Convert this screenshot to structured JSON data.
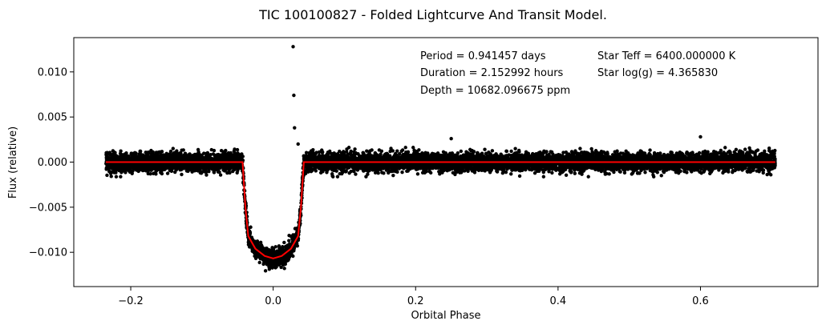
{
  "chart_data": {
    "type": "scatter",
    "title": "TIC 100100827 - Folded Lightcurve And Transit Model.",
    "xlabel": "Orbital Phase",
    "ylabel": "Flux (relative)",
    "xlim": [
      -0.28,
      0.765
    ],
    "ylim": [
      -0.0138,
      0.0138
    ],
    "xticks": [
      -0.2,
      0.0,
      0.2,
      0.4,
      0.6
    ],
    "xtick_labels": [
      "−0.2",
      "0.0",
      "0.2",
      "0.4",
      "0.6"
    ],
    "yticks": [
      -0.01,
      -0.005,
      0.0,
      0.005,
      0.01
    ],
    "ytick_labels": [
      "−0.010",
      "−0.005",
      "0.000",
      "0.005",
      "0.010"
    ],
    "grid": false,
    "annotations": [
      "Period =   0.941457 days",
      "Duration =   2.152992 hours",
      "Depth = 10682.096675 ppm",
      "Star Teff = 6400.000000 K",
      "Star log(g) =   4.365830"
    ],
    "series": [
      {
        "name": "Folded lightcurve",
        "kind": "scatter",
        "color": "#000000",
        "phase_range": [
          -0.235,
          0.705
        ],
        "noise_halfwidth": 0.0012,
        "outliers": [
          {
            "x": 0.028,
            "y": 0.0128
          },
          {
            "x": 0.029,
            "y": 0.0074
          },
          {
            "x": 0.03,
            "y": 0.0038
          },
          {
            "x": 0.035,
            "y": 0.002
          },
          {
            "x": 0.6,
            "y": 0.0028
          },
          {
            "x": 0.25,
            "y": 0.0026
          }
        ]
      },
      {
        "name": "Transit model",
        "kind": "line",
        "color": "#ff0000",
        "points": [
          [
            -0.235,
            0.0
          ],
          [
            -0.043,
            0.0
          ],
          [
            -0.039,
            -0.005
          ],
          [
            -0.035,
            -0.0082
          ],
          [
            -0.025,
            -0.0096
          ],
          [
            -0.012,
            -0.0104
          ],
          [
            0.0,
            -0.01068
          ],
          [
            0.012,
            -0.0104
          ],
          [
            0.025,
            -0.0096
          ],
          [
            0.035,
            -0.0082
          ],
          [
            0.039,
            -0.005
          ],
          [
            0.043,
            0.0
          ],
          [
            0.705,
            0.0
          ]
        ]
      }
    ]
  }
}
